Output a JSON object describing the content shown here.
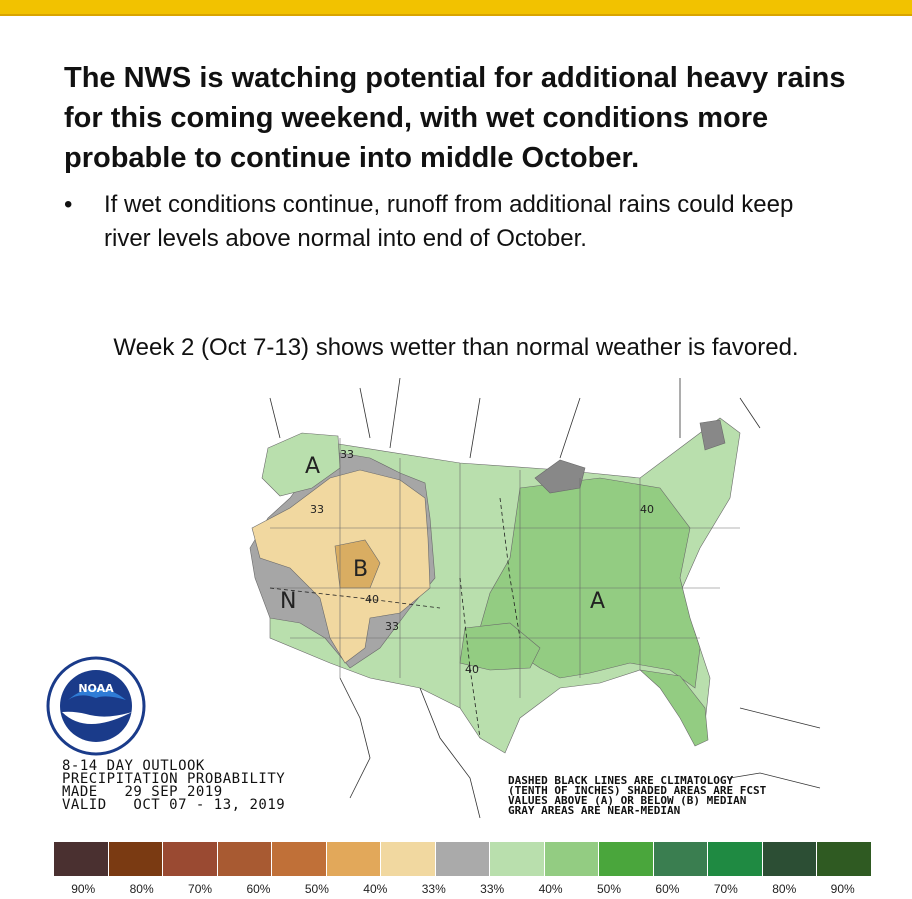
{
  "headline": "The NWS is watching potential for additional heavy rains for this coming weekend, with wet conditions more probable to continue into middle October.",
  "bullet": "If wet conditions continue, runoff from additional rains could keep river levels above normal into end of October.",
  "bullet_symbol": "•",
  "caption": "Week 2 (Oct 7-13) shows wetter than normal weather is favored.",
  "map": {
    "labels": {
      "a_northwest": "A",
      "b_central": "B",
      "n_west": "N",
      "a_southeast": "A"
    },
    "contours": [
      "33",
      "33",
      "40",
      "33",
      "40",
      "40"
    ],
    "colors": {
      "near_median": "#a6a6a6",
      "below_33": "#f1d8a0",
      "below_40": "#d9ad62",
      "above_33": "#b9dfad",
      "above_40": "#93cc82",
      "water": "#ffffff"
    }
  },
  "outlook": {
    "line1": "8-14 DAY OUTLOOK",
    "line2": "PRECIPITATION PROBABILITY",
    "line3": "MADE   29 SEP 2019",
    "line4": "VALID   OCT 07 - 13, 2019"
  },
  "note": {
    "line1": "DASHED BLACK LINES ARE CLIMATOLOGY",
    "line2": "(TENTH OF INCHES) SHADED AREAS ARE FCST",
    "line3": "VALUES ABOVE (A) OR BELOW (B) MEDIAN",
    "line4": "GRAY AREAS ARE NEAR-MEDIAN"
  },
  "noaa_logo_text": "NOAA",
  "legend": {
    "colors": [
      "#4a3030",
      "#7a3a12",
      "#9a4a32",
      "#a85a32",
      "#c07038",
      "#e2a85a",
      "#f1d8a0",
      "#aaaaaa",
      "#b9dfad",
      "#93cc82",
      "#4aa63c",
      "#3a7e50",
      "#1f8a42",
      "#2c4e34",
      "#2f5a22"
    ],
    "labels": [
      "90%",
      "80%",
      "70%",
      "60%",
      "50%",
      "40%",
      "33%",
      "33%",
      "40%",
      "50%",
      "60%",
      "70%",
      "80%",
      "90%"
    ]
  }
}
